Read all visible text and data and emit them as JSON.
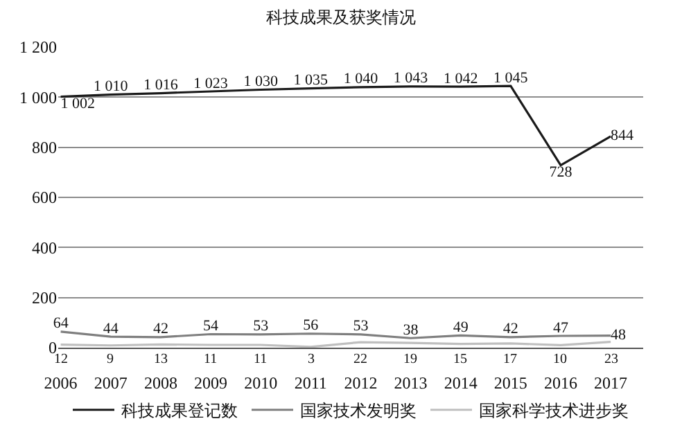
{
  "chart_data": {
    "type": "line",
    "title": "科技成果及获奖情况",
    "categories": [
      "2006",
      "2007",
      "2008",
      "2009",
      "2010",
      "2011",
      "2012",
      "2013",
      "2014",
      "2015",
      "2016",
      "2017"
    ],
    "series": [
      {
        "name": "科技成果登记数",
        "color": "#1a1a1a",
        "values": [
          1002,
          1010,
          1016,
          1023,
          1030,
          1035,
          1040,
          1043,
          1042,
          1045,
          728,
          844
        ],
        "value_labels": [
          "1 002",
          "1 010",
          "1 016",
          "1 023",
          "1 030",
          "1 035",
          "1 040",
          "1 043",
          "1 042",
          "1 045",
          "728",
          "844"
        ]
      },
      {
        "name": "国家技术发明奖",
        "color": "#7f7f7f",
        "values": [
          64,
          44,
          42,
          54,
          53,
          56,
          53,
          38,
          49,
          42,
          47,
          48
        ],
        "value_labels": [
          "64",
          "44",
          "42",
          "54",
          "53",
          "56",
          "53",
          "38",
          "49",
          "42",
          "47",
          "48"
        ]
      },
      {
        "name": "国家科学技术进步奖",
        "color": "#bfbfbf",
        "values": [
          12,
          9,
          13,
          11,
          11,
          3,
          22,
          19,
          15,
          17,
          10,
          23
        ],
        "value_labels": [
          "12",
          "9",
          "13",
          "11",
          "11",
          "3",
          "22",
          "19",
          "15",
          "17",
          "10",
          "23"
        ]
      }
    ],
    "ylim": [
      0,
      1200
    ],
    "yticks": [
      0,
      {
        "value": 200,
        "label": "200"
      },
      {
        "value": 400,
        "label": "400"
      },
      {
        "value": 600,
        "label": "600"
      },
      {
        "value": 800,
        "label": "800"
      },
      {
        "value": 1000,
        "label": "1 000"
      },
      {
        "value": 1200,
        "label": "1 200"
      }
    ],
    "grid": "y",
    "legend": "bottom",
    "marker": "none",
    "line_style": "solid"
  }
}
